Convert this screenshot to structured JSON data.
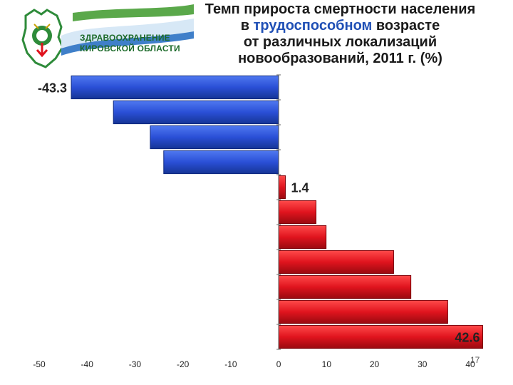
{
  "logo": {
    "line1": "ЗДРАВООХРАНЕНИЕ",
    "line2": "КИРОВСКОЙ ОБЛАСТИ"
  },
  "title": {
    "part1": "Темп прироста смертности населения",
    "part2_a": "в ",
    "part2_accent": "трудоспособном",
    "part2_b": " возрасте",
    "part3": "от различных локализаций",
    "part4": "новообразований, 2011 г. (%)"
  },
  "page_number": "17",
  "colors": {
    "negative": "#2a4fd6",
    "positive": "#e0141e",
    "logo_green": "#1c6a2a"
  },
  "chart_data": {
    "type": "bar",
    "orientation": "horizontal",
    "values": [
      -43.3,
      -34.5,
      -26.8,
      -24.0,
      1.4,
      7.8,
      9.9,
      24.0,
      27.6,
      35.3,
      42.6
    ],
    "data_labels": [
      {
        "index": 0,
        "text": "-43.3"
      },
      {
        "index": 4,
        "text": "1.4"
      },
      {
        "index": 10,
        "text": "42.6"
      }
    ],
    "xlim": [
      -50,
      40
    ],
    "x_ticks": [
      "-50",
      "-40",
      "-30",
      "-20",
      "-10",
      "0",
      "10",
      "20",
      "30",
      "40"
    ],
    "grid": false,
    "legend": "none"
  }
}
